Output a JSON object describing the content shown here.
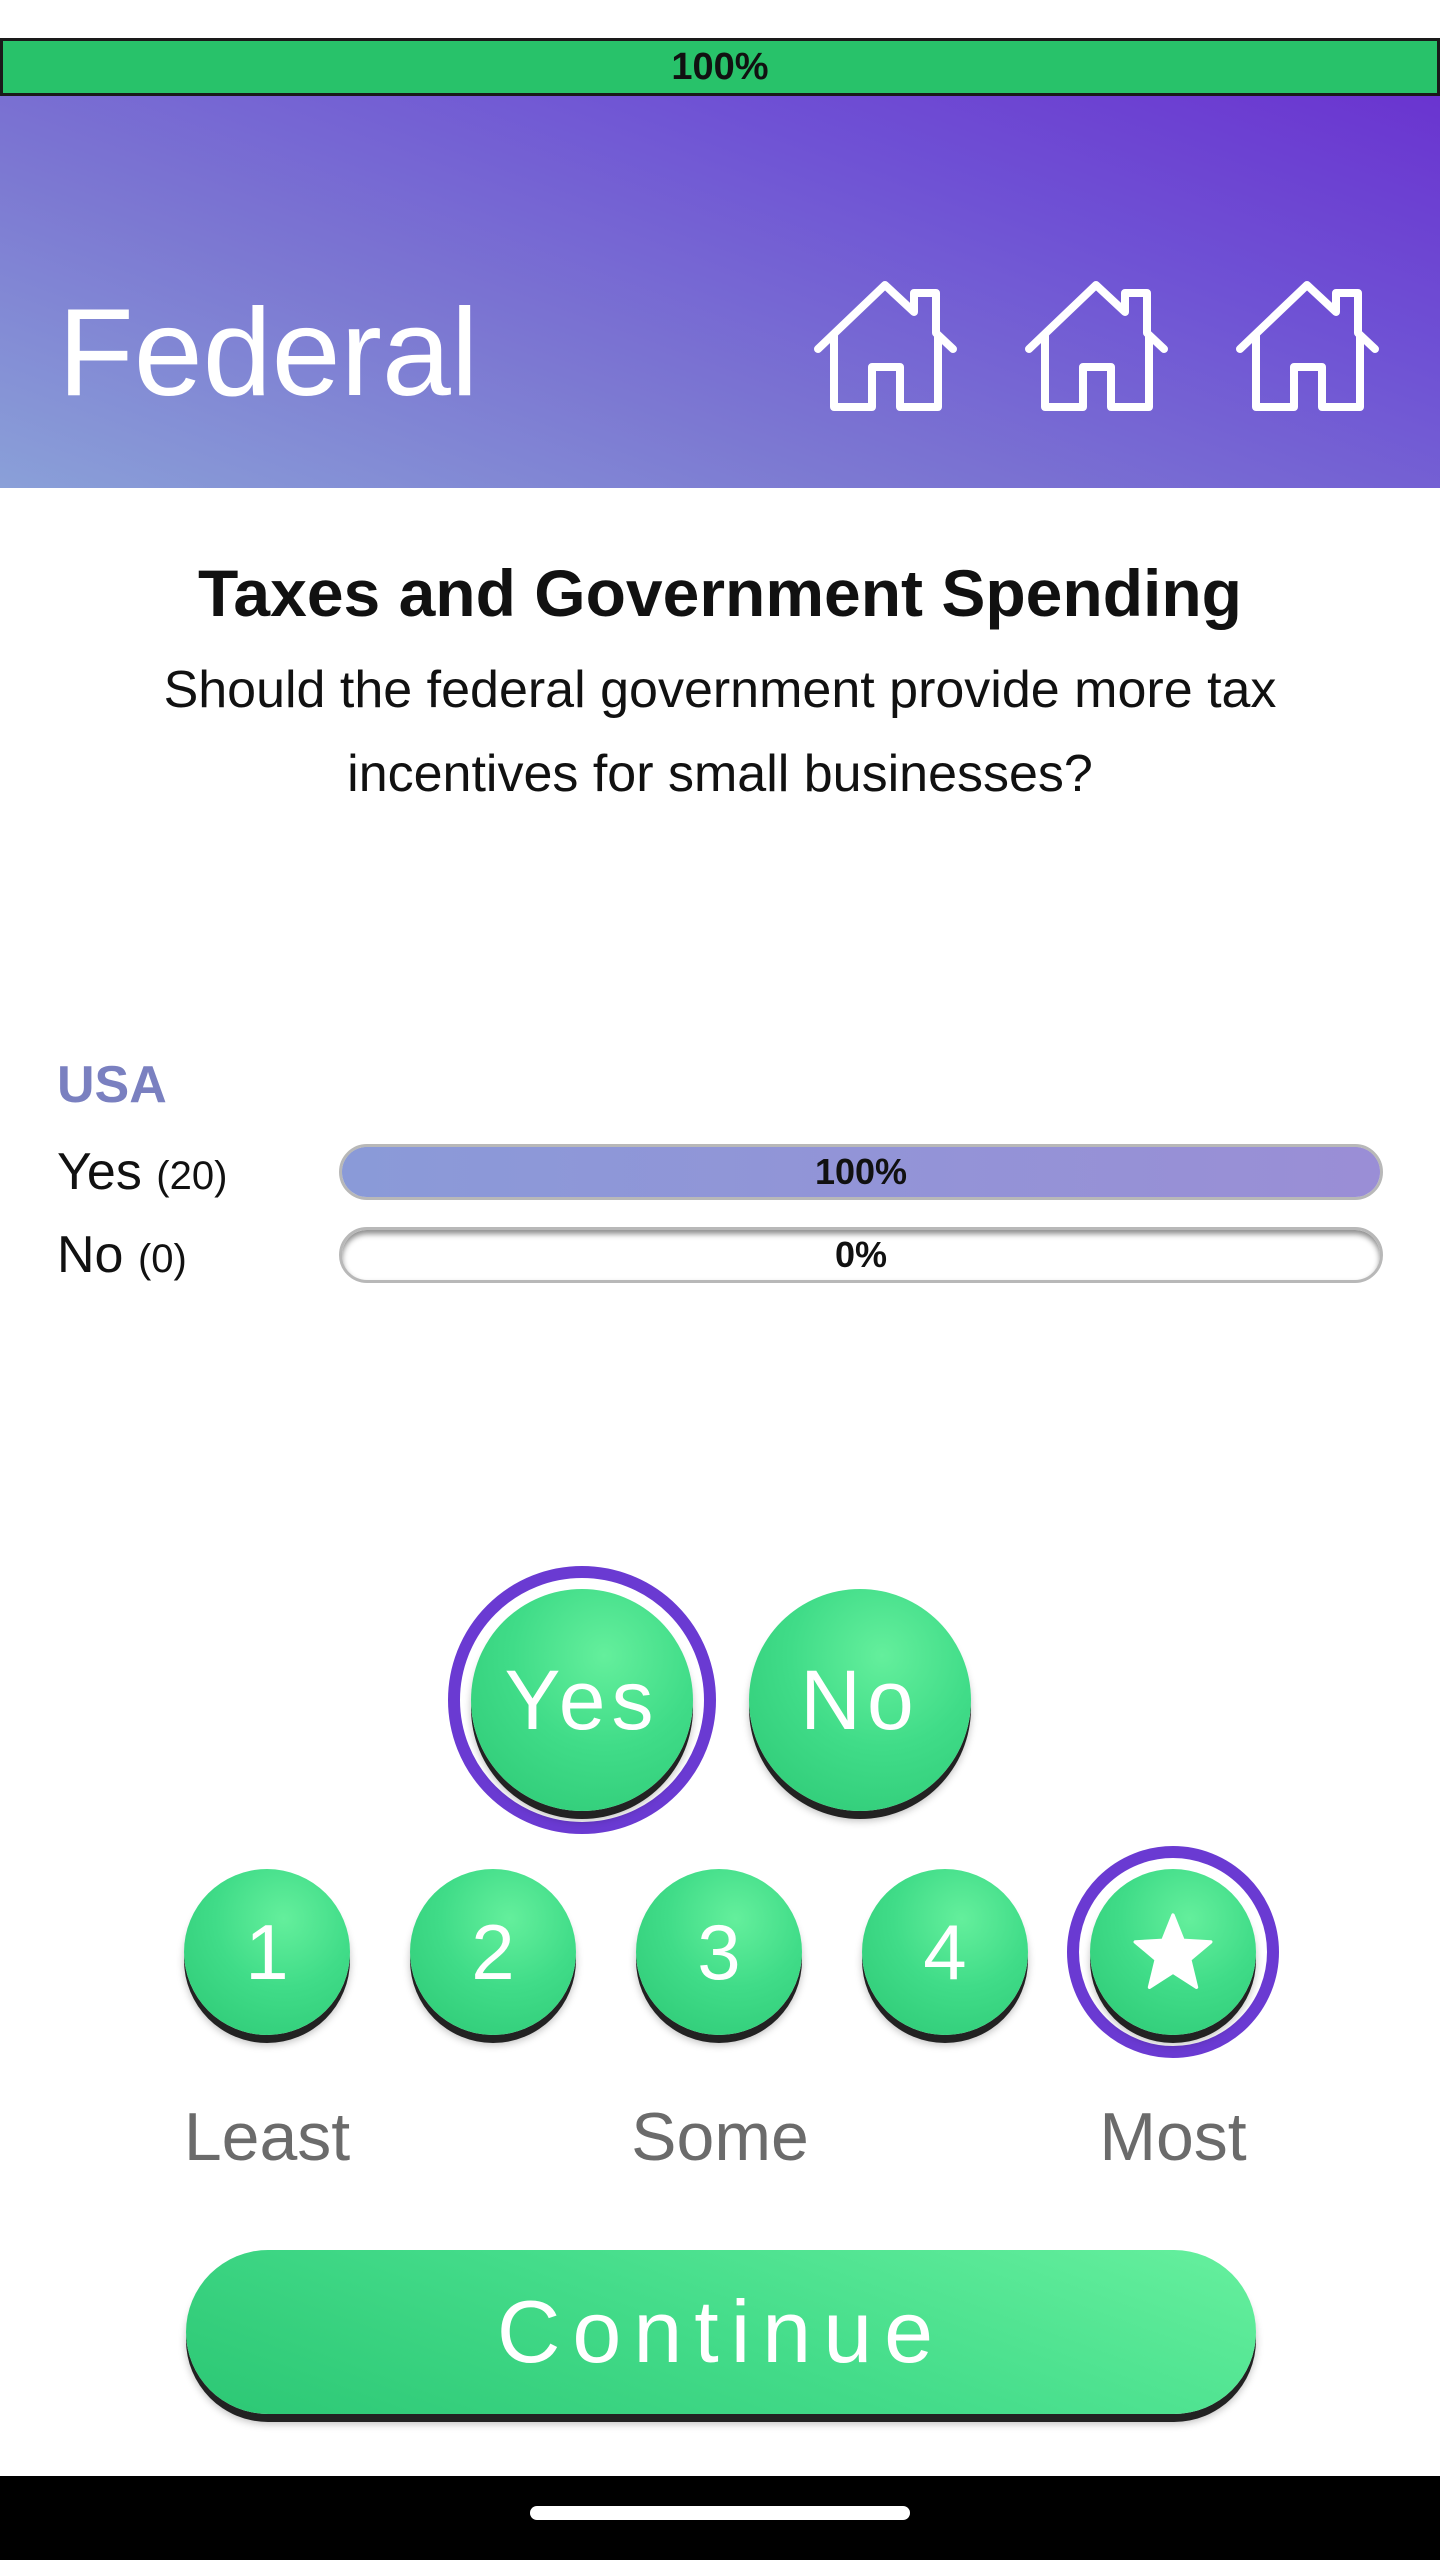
{
  "progress": {
    "value": 1.0,
    "label": "100%"
  },
  "header": {
    "title": "Federal",
    "icons": [
      "house-icon",
      "house-icon",
      "house-icon"
    ],
    "gradient_colors": [
      "#8aa0d8",
      "#6a34d0"
    ]
  },
  "question": {
    "category": "Taxes and Government Spending",
    "text": "Should the federal government provide more tax incentives for small businesses?"
  },
  "results": {
    "region": "USA",
    "rows": [
      {
        "label": "Yes",
        "count": "(20)",
        "percent_label": "100%",
        "value": 1.0
      },
      {
        "label": "No",
        "count": "(0)",
        "percent_label": "0%",
        "value": 0.0
      }
    ]
  },
  "answer": {
    "options": [
      {
        "label": "Yes",
        "selected": true
      },
      {
        "label": "No",
        "selected": false
      }
    ]
  },
  "importance": {
    "options": [
      {
        "label": "1",
        "selected": false
      },
      {
        "label": "2",
        "selected": false
      },
      {
        "label": "3",
        "selected": false
      },
      {
        "label": "4",
        "selected": false
      },
      {
        "label": "",
        "icon": "star-icon",
        "selected": true
      }
    ],
    "scale_labels": {
      "least": "Least",
      "some": "Some",
      "most": "Most"
    }
  },
  "continue_label": "Continue",
  "colors": {
    "accent_green": "#28c26a",
    "selection_purple": "#6a3ad2",
    "result_fill": "#8a9ad8"
  }
}
